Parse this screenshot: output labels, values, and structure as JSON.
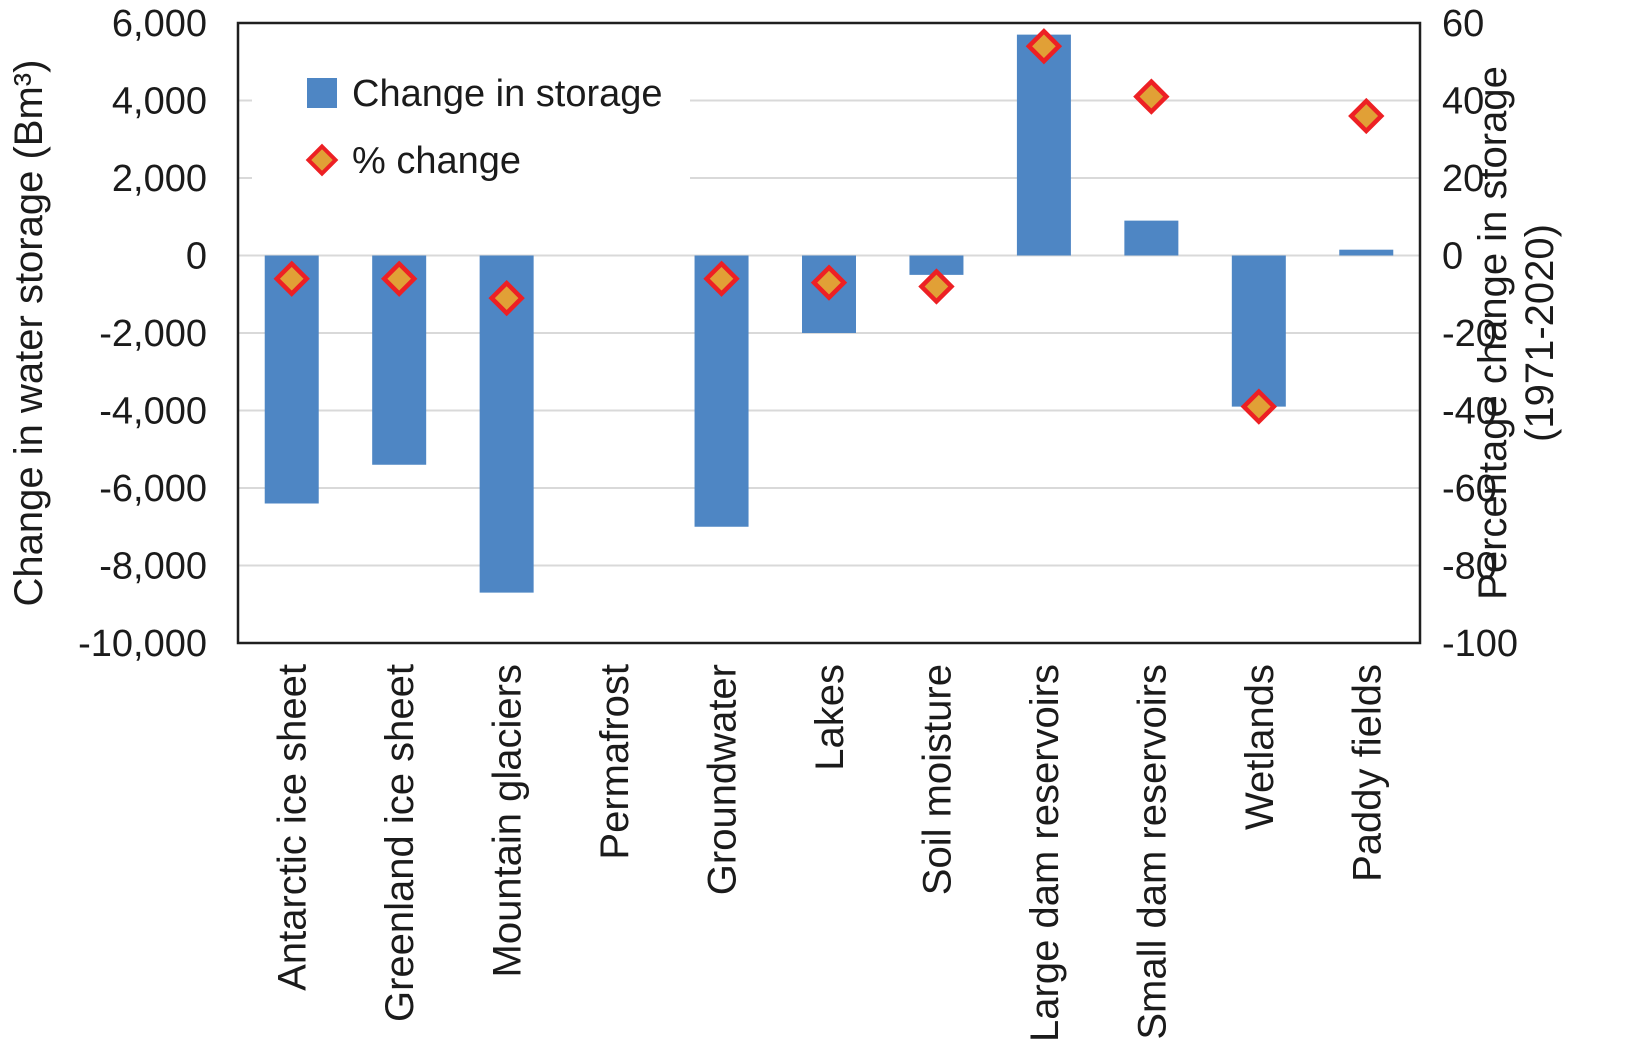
{
  "chart_data": {
    "type": "bar",
    "categories": [
      "Antarctic ice sheet",
      "Greenland ice sheet",
      "Mountain glaciers",
      "Permafrost",
      "Groundwater",
      "Lakes",
      "Soil moisture",
      "Large dam reservoirs",
      "Small dam reservoirs",
      "Wetlands",
      "Paddy fields"
    ],
    "series": [
      {
        "name": "Change in storage",
        "type": "bar",
        "axis": "left",
        "values": [
          -6400,
          -5400,
          -8700,
          null,
          -7000,
          -2000,
          -500,
          5700,
          900,
          -3900,
          150
        ]
      },
      {
        "name": "% change",
        "type": "scatter",
        "marker": "diamond",
        "axis": "right",
        "values": [
          -6,
          -6,
          -11,
          null,
          -6,
          -7,
          -8,
          54,
          41,
          -39,
          36
        ]
      }
    ],
    "left_axis": {
      "title": "Change in water storage (Bm³)",
      "min": -10000,
      "max": 6000,
      "tick_step": 2000,
      "tick_labels": [
        "6,000",
        "4,000",
        "2,000",
        "0",
        "-2,000",
        "-4,000",
        "-6,000",
        "-8,000",
        "-10,000"
      ]
    },
    "right_axis": {
      "title_line1": "Percentage change in storage",
      "title_line2": "(1971-2020)",
      "min": -100,
      "max": 60,
      "tick_step": 20,
      "tick_labels": [
        "60",
        "40",
        "20",
        "0",
        "-20",
        "-40",
        "-60",
        "-80",
        "-100"
      ]
    },
    "legend": {
      "position": "inside-top-left",
      "items": [
        {
          "label": "Change in storage",
          "marker": "square"
        },
        {
          "label": "% change",
          "marker": "diamond"
        }
      ]
    },
    "grid": "horizontal"
  },
  "colors": {
    "bar": "#4e86c4",
    "diamond_fill": "#e1a036",
    "diamond_stroke": "#ed2024",
    "gridline": "#d9d9d9",
    "plot_border": "#1f1f1f",
    "text": "#1b1b1b",
    "background": "#ffffff"
  }
}
